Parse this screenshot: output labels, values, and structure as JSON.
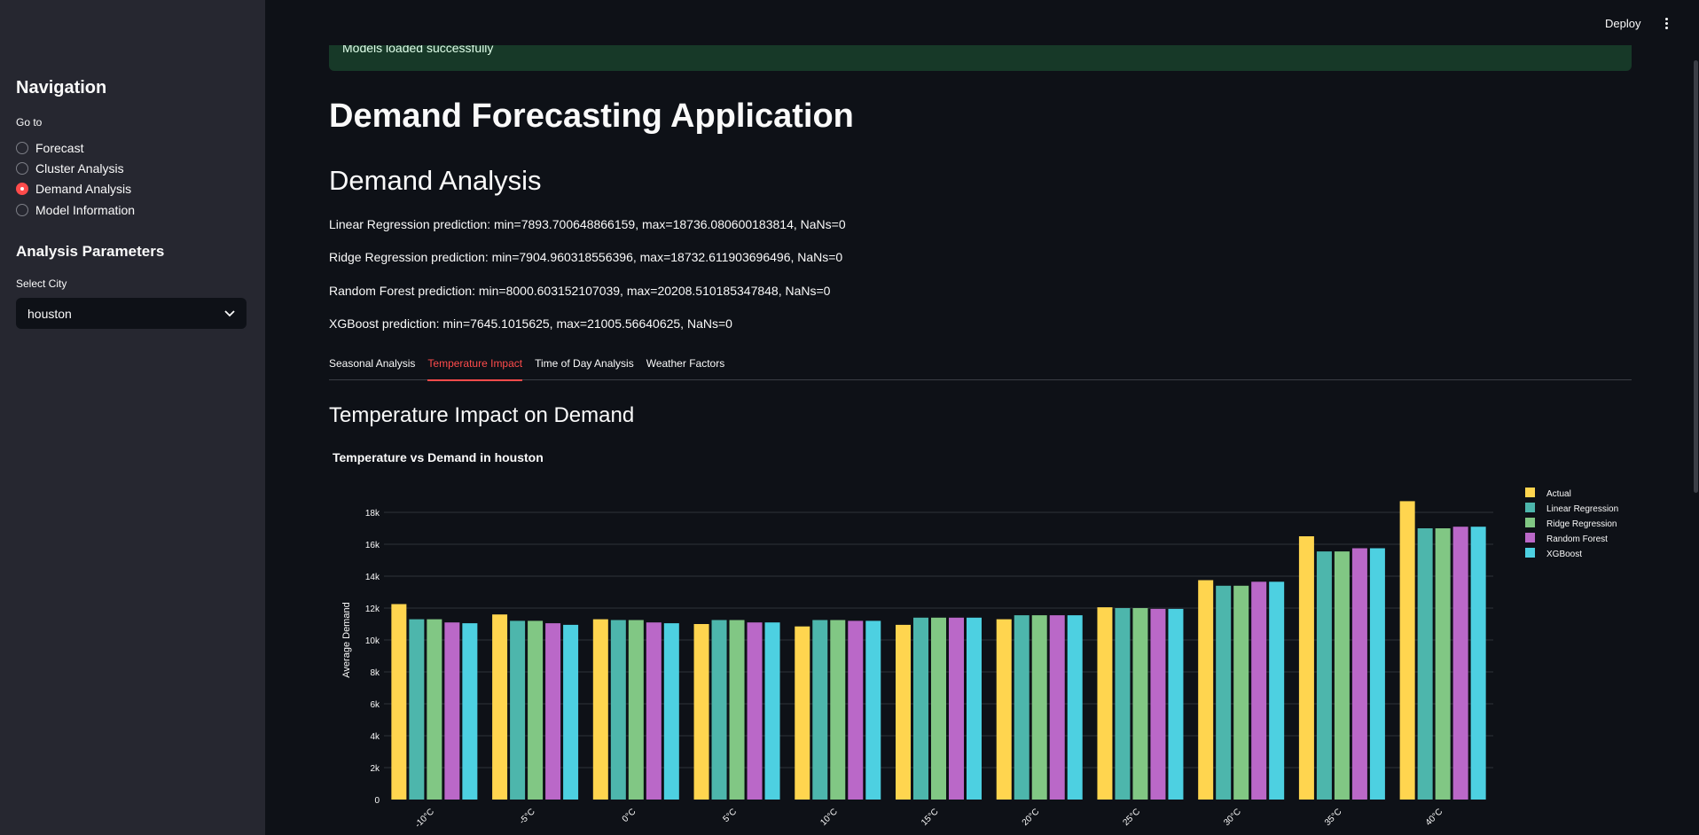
{
  "sidebar": {
    "nav_heading": "Navigation",
    "goto_label": "Go to",
    "nav_options": [
      {
        "label": "Forecast",
        "selected": false
      },
      {
        "label": "Cluster Analysis",
        "selected": false
      },
      {
        "label": "Demand Analysis",
        "selected": true
      },
      {
        "label": "Model Information",
        "selected": false
      }
    ],
    "params_heading": "Analysis Parameters",
    "city_label": "Select City",
    "city_value": "houston"
  },
  "topbar": {
    "deploy_label": "Deploy",
    "menu_icon": "vertical-dots-icon"
  },
  "main": {
    "success_message": "Models loaded successfully",
    "app_title": "Demand Forecasting Application",
    "section_title": "Demand Analysis",
    "predictions": [
      "Linear Regression prediction: min=7893.700648866159, max=18736.080600183814, NaNs=0",
      "Ridge Regression prediction: min=7904.960318556396, max=18732.611903696496, NaNs=0",
      "Random Forest prediction: min=8000.603152107039, max=20208.510185347848, NaNs=0",
      "XGBoost prediction: min=7645.1015625, max=21005.56640625, NaNs=0"
    ],
    "tabs": [
      {
        "label": "Seasonal Analysis",
        "active": false
      },
      {
        "label": "Temperature Impact",
        "active": true
      },
      {
        "label": "Time of Day Analysis",
        "active": false
      },
      {
        "label": "Weather Factors",
        "active": false
      }
    ],
    "subsection_title": "Temperature Impact on Demand"
  },
  "colors": {
    "accent": "#ff4b4b",
    "success_bg": "#173928"
  },
  "chart_data": {
    "type": "bar",
    "title": "Temperature vs Demand in houston",
    "xlabel": "",
    "ylabel": "Average Demand",
    "ylim": [
      0,
      19000
    ],
    "yticks": [
      0,
      2000,
      4000,
      6000,
      8000,
      10000,
      12000,
      14000,
      16000,
      18000
    ],
    "ytick_labels": [
      "0",
      "2k",
      "4k",
      "6k",
      "8k",
      "10k",
      "12k",
      "14k",
      "16k",
      "18k"
    ],
    "grid": true,
    "legend_position": "top-right",
    "categories": [
      "-10°C",
      "-5°C",
      "0°C",
      "5°C",
      "10°C",
      "15°C",
      "20°C",
      "25°C",
      "30°C",
      "35°C",
      "40°C"
    ],
    "series": [
      {
        "name": "Actual",
        "color": "#ffd54f",
        "values": [
          12250,
          11600,
          11300,
          11000,
          10850,
          10950,
          11300,
          12050,
          13750,
          16500,
          18700
        ]
      },
      {
        "name": "Linear Regression",
        "color": "#4db6ac",
        "values": [
          11300,
          11200,
          11250,
          11250,
          11250,
          11400,
          11550,
          12000,
          13400,
          15550,
          17000
        ]
      },
      {
        "name": "Ridge Regression",
        "color": "#81c784",
        "values": [
          11300,
          11200,
          11250,
          11250,
          11250,
          11400,
          11550,
          12000,
          13400,
          15550,
          17000
        ]
      },
      {
        "name": "Random Forest",
        "color": "#ba68c8",
        "values": [
          11100,
          11050,
          11100,
          11100,
          11200,
          11400,
          11550,
          11950,
          13650,
          15750,
          17100
        ]
      },
      {
        "name": "XGBoost",
        "color": "#4dd0e1",
        "values": [
          11050,
          10950,
          11050,
          11100,
          11200,
          11400,
          11550,
          11950,
          13650,
          15750,
          17100
        ]
      }
    ]
  }
}
